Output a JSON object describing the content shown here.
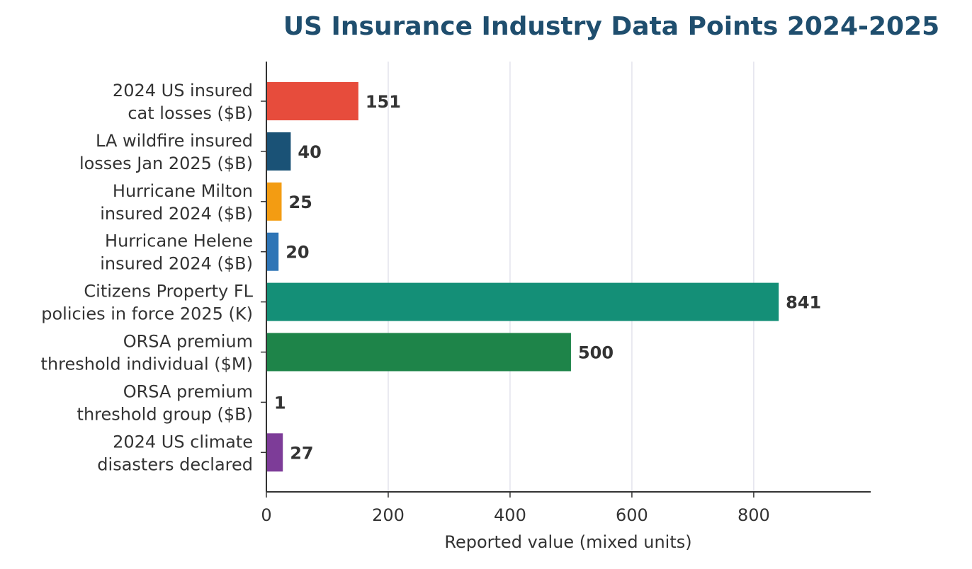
{
  "chart_data": {
    "type": "barh",
    "title": "US Insurance Industry Data Points 2024-2025",
    "xlabel": "Reported value (mixed units)",
    "categories": [
      "2024 US insured\ncat losses ($B)",
      "LA wildfire insured\nlosses Jan 2025 ($B)",
      "Hurricane Milton\ninsured 2024 ($B)",
      "Hurricane Helene\ninsured 2024 ($B)",
      "Citizens Property FL\npolicies in force 2025 (K)",
      "ORSA premium\nthreshold individual ($M)",
      "ORSA premium\nthreshold group ($B)",
      "2024 US climate\ndisasters declared"
    ],
    "values": [
      151,
      40,
      25,
      20,
      841,
      500,
      1,
      27
    ],
    "colors": [
      "#e74c3c",
      "#1a5276",
      "#f39c12",
      "#2e75b6",
      "#148f77",
      "#1e8449",
      "#2e86c1",
      "#7d3c98"
    ],
    "xlim": [
      0,
      992
    ],
    "xticks": [
      0,
      200,
      400,
      600,
      800
    ],
    "grid": true
  }
}
